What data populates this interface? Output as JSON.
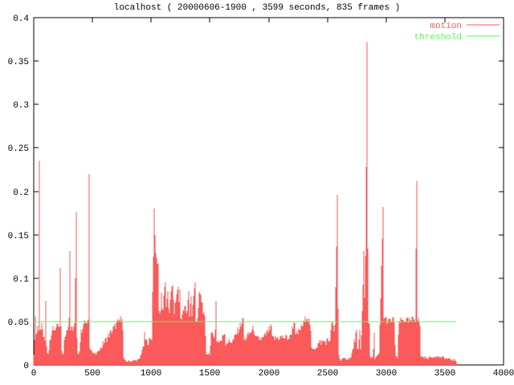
{
  "window": {
    "title": "localhost ( 20000606-1900 , 3599 seconds, 835 frames )"
  },
  "colors": {
    "motion": "#fa5a5a",
    "threshold": "#57fb57",
    "axis": "#000000",
    "background": "#ffffff"
  },
  "chart_data": {
    "type": "area",
    "title": "localhost ( 20000606-1900 , 3599 seconds, 835 frames )",
    "xlabel": "",
    "ylabel": "",
    "xlim": [
      0,
      4000
    ],
    "ylim": [
      0,
      0.4
    ],
    "x_ticks": [
      0,
      500,
      1000,
      1500,
      2000,
      2500,
      3000,
      3500,
      4000
    ],
    "x_tick_labels": [
      "0",
      "500",
      "1000",
      "1500",
      "2000",
      "2500",
      "3000",
      "3500",
      "4000"
    ],
    "y_ticks": [
      0,
      0.05,
      0.1,
      0.15,
      0.2,
      0.25,
      0.3,
      0.35,
      0.4
    ],
    "y_tick_labels": [
      "0",
      "0.05",
      "0.1",
      "0.15",
      "0.2",
      "0.25",
      "0.3",
      "0.35",
      "0.4"
    ],
    "grid": false,
    "legend_position": "top-right",
    "duration_seconds": 3599,
    "frames": 835,
    "legend": [
      {
        "label": "motion",
        "color": "#fa5a5a"
      },
      {
        "label": "threshold",
        "color": "#57fb57"
      }
    ],
    "series": [
      {
        "name": "motion",
        "style": "impulses",
        "color": "#fa5a5a",
        "noise_amplitude": 0.0045,
        "noise_amplitude_low": 0.0015,
        "points": [
          [
            0,
            0.012
          ],
          [
            8,
            0.035
          ],
          [
            14,
            0.055
          ],
          [
            20,
            0.032
          ],
          [
            35,
            0.046
          ],
          [
            47,
            0.04
          ],
          [
            50,
            0.235
          ],
          [
            54,
            0.042
          ],
          [
            70,
            0.046
          ],
          [
            85,
            0.03
          ],
          [
            100,
            0.028
          ],
          [
            105,
            0.074
          ],
          [
            110,
            0.016
          ],
          [
            125,
            0.013
          ],
          [
            140,
            0.03
          ],
          [
            160,
            0.045
          ],
          [
            180,
            0.04
          ],
          [
            205,
            0.05
          ],
          [
            222,
            0.046
          ],
          [
            228,
            0.112
          ],
          [
            233,
            0.04
          ],
          [
            240,
            0.013
          ],
          [
            252,
            0.013
          ],
          [
            262,
            0.03
          ],
          [
            280,
            0.042
          ],
          [
            300,
            0.046
          ],
          [
            309,
            0.131
          ],
          [
            314,
            0.04
          ],
          [
            330,
            0.041
          ],
          [
            350,
            0.046
          ],
          [
            364,
            0.176
          ],
          [
            369,
            0.028
          ],
          [
            374,
            0.013
          ],
          [
            390,
            0.016
          ],
          [
            400,
            0.035
          ],
          [
            420,
            0.046
          ],
          [
            440,
            0.05
          ],
          [
            455,
            0.044
          ],
          [
            465,
            0.055
          ],
          [
            469,
            0.22
          ],
          [
            473,
            0.028
          ],
          [
            482,
            0.02
          ],
          [
            500,
            0.014
          ],
          [
            530,
            0.012
          ],
          [
            560,
            0.018
          ],
          [
            600,
            0.026
          ],
          [
            650,
            0.036
          ],
          [
            700,
            0.046
          ],
          [
            740,
            0.053
          ],
          [
            756,
            0.058
          ],
          [
            763,
            0.01
          ],
          [
            775,
            0.004
          ],
          [
            860,
            0.005
          ],
          [
            900,
            0.006
          ],
          [
            920,
            0.016
          ],
          [
            940,
            0.024
          ],
          [
            946,
            0.04
          ],
          [
            952,
            0.026
          ],
          [
            990,
            0.028
          ],
          [
            1008,
            0.032
          ],
          [
            1015,
            0.122
          ],
          [
            1022,
            0.132
          ],
          [
            1029,
            0.18
          ],
          [
            1036,
            0.126
          ],
          [
            1050,
            0.12
          ],
          [
            1060,
            0.114
          ],
          [
            1066,
            0.066
          ],
          [
            1078,
            0.056
          ],
          [
            1090,
            0.083
          ],
          [
            1096,
            0.056
          ],
          [
            1118,
            0.095
          ],
          [
            1124,
            0.058
          ],
          [
            1145,
            0.085
          ],
          [
            1151,
            0.056
          ],
          [
            1175,
            0.09
          ],
          [
            1180,
            0.06
          ],
          [
            1186,
            0.092
          ],
          [
            1192,
            0.058
          ],
          [
            1228,
            0.09
          ],
          [
            1234,
            0.056
          ],
          [
            1242,
            0.087
          ],
          [
            1248,
            0.053
          ],
          [
            1295,
            0.068
          ],
          [
            1301,
            0.053
          ],
          [
            1317,
            0.085
          ],
          [
            1323,
            0.051
          ],
          [
            1337,
            0.079
          ],
          [
            1343,
            0.051
          ],
          [
            1372,
            0.095
          ],
          [
            1378,
            0.051
          ],
          [
            1400,
            0.052
          ],
          [
            1406,
            0.085
          ],
          [
            1420,
            0.08
          ],
          [
            1436,
            0.07
          ],
          [
            1450,
            0.056
          ],
          [
            1460,
            0.05
          ],
          [
            1466,
            0.013
          ],
          [
            1500,
            0.013
          ],
          [
            1510,
            0.032
          ],
          [
            1530,
            0.038
          ],
          [
            1544,
            0.03
          ],
          [
            1550,
            0.074
          ],
          [
            1556,
            0.028
          ],
          [
            1600,
            0.028
          ],
          [
            1626,
            0.04
          ],
          [
            1632,
            0.026
          ],
          [
            1700,
            0.028
          ],
          [
            1784,
            0.053
          ],
          [
            1790,
            0.028
          ],
          [
            1878,
            0.043
          ],
          [
            1884,
            0.03
          ],
          [
            1950,
            0.03
          ],
          [
            2024,
            0.044
          ],
          [
            2030,
            0.03
          ],
          [
            2100,
            0.032
          ],
          [
            2180,
            0.031
          ],
          [
            2223,
            0.052
          ],
          [
            2229,
            0.032
          ],
          [
            2299,
            0.048
          ],
          [
            2326,
            0.057
          ],
          [
            2353,
            0.048
          ],
          [
            2367,
            0.017
          ],
          [
            2440,
            0.026
          ],
          [
            2520,
            0.028
          ],
          [
            2545,
            0.053
          ],
          [
            2553,
            0.04
          ],
          [
            2562,
            0.03
          ],
          [
            2587,
            0.196
          ],
          [
            2593,
            0.02
          ],
          [
            2602,
            0.006
          ],
          [
            2700,
            0.008
          ],
          [
            2751,
            0.04
          ],
          [
            2757,
            0.01
          ],
          [
            2779,
            0.04
          ],
          [
            2785,
            0.012
          ],
          [
            2813,
            0.131
          ],
          [
            2819,
            0.05
          ],
          [
            2840,
            0.372
          ],
          [
            2846,
            0.052
          ],
          [
            2858,
            0.05
          ],
          [
            2865,
            0.008
          ],
          [
            2890,
            0.008
          ],
          [
            2896,
            0.037
          ],
          [
            2903,
            0.008
          ],
          [
            2940,
            0.012
          ],
          [
            2948,
            0.048
          ],
          [
            2975,
            0.182
          ],
          [
            2981,
            0.055
          ],
          [
            3020,
            0.05
          ],
          [
            3070,
            0.052
          ],
          [
            3080,
            0.01
          ],
          [
            3100,
            0.008
          ],
          [
            3108,
            0.05
          ],
          [
            3150,
            0.052
          ],
          [
            3200,
            0.05
          ],
          [
            3250,
            0.054
          ],
          [
            3259,
            0.212
          ],
          [
            3265,
            0.052
          ],
          [
            3288,
            0.05
          ],
          [
            3294,
            0.01
          ],
          [
            3350,
            0.008
          ],
          [
            3420,
            0.01
          ],
          [
            3500,
            0.008
          ],
          [
            3560,
            0.006
          ],
          [
            3599,
            0.005
          ]
        ]
      },
      {
        "name": "threshold",
        "style": "line",
        "color": "#57fb57",
        "points": [
          [
            0,
            0.05
          ],
          [
            3599,
            0.05
          ]
        ]
      }
    ]
  }
}
